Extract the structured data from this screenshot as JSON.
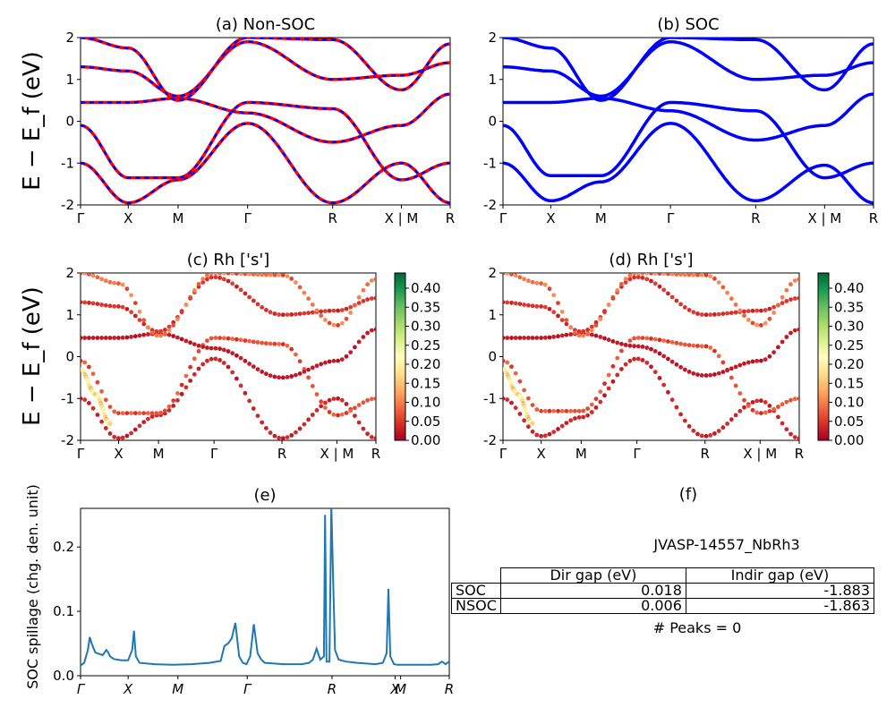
{
  "ylabel_bands": "E − E_f (eV)",
  "chart_data": [
    {
      "id": "a",
      "type": "line",
      "title": "(a) Non-SOC",
      "ylim": [
        -2,
        2
      ],
      "yticks": [
        -2,
        -1,
        0,
        1,
        2
      ],
      "xticks": [
        "Γ",
        "X",
        "M",
        "Γ",
        "R",
        "X | M",
        "R"
      ],
      "kpos": [
        0,
        0.129,
        0.264,
        0.452,
        0.682,
        0.868,
        1.0
      ],
      "colors": [
        "#ff0000",
        "#0000ff"
      ],
      "series": [
        {
          "x": [
            0,
            0.129,
            0.264,
            0.452,
            0.682,
            0.868,
            1.0
          ],
          "y": [
            -1.0,
            -1.95,
            -1.4,
            -0.05,
            -1.95,
            -1.0,
            -1.95
          ]
        },
        {
          "x": [
            0,
            0.129,
            0.264,
            0.452,
            0.682,
            0.868,
            1.0
          ],
          "y": [
            -0.1,
            -1.35,
            -1.35,
            0.45,
            0.3,
            -1.4,
            -1.0
          ]
        },
        {
          "x": [
            0,
            0.129,
            0.264,
            0.452,
            0.682,
            0.868,
            1.0
          ],
          "y": [
            0.45,
            0.45,
            0.55,
            0.2,
            -0.5,
            -0.1,
            0.65
          ]
        },
        {
          "x": [
            0,
            0.129,
            0.264,
            0.452,
            0.682,
            0.868,
            1.0
          ],
          "y": [
            1.3,
            1.2,
            0.6,
            1.9,
            1.0,
            1.1,
            1.4
          ]
        },
        {
          "x": [
            0,
            0.129,
            0.264,
            0.452,
            0.682,
            0.868,
            1.0
          ],
          "y": [
            2.0,
            1.75,
            0.5,
            2.0,
            1.95,
            0.75,
            1.85
          ]
        }
      ]
    },
    {
      "id": "b",
      "type": "line",
      "title": "(b) SOC",
      "ylim": [
        -2,
        2
      ],
      "yticks": [
        -2,
        -1,
        0,
        1,
        2
      ],
      "xticks": [
        "Γ",
        "X",
        "M",
        "Γ",
        "R",
        "X | M",
        "R"
      ],
      "kpos": [
        0,
        0.129,
        0.264,
        0.452,
        0.682,
        0.868,
        1.0
      ],
      "colors": [
        "#0000ff"
      ],
      "series": [
        {
          "x": [
            0,
            0.129,
            0.264,
            0.452,
            0.682,
            0.868,
            1.0
          ],
          "y": [
            -1.0,
            -1.9,
            -1.45,
            -0.05,
            -1.9,
            -1.05,
            -1.95
          ]
        },
        {
          "x": [
            0,
            0.129,
            0.264,
            0.452,
            0.682,
            0.868,
            1.0
          ],
          "y": [
            -0.1,
            -1.3,
            -1.3,
            0.45,
            0.25,
            -1.35,
            -1.0
          ]
        },
        {
          "x": [
            0,
            0.129,
            0.264,
            0.452,
            0.682,
            0.868,
            1.0
          ],
          "y": [
            0.45,
            0.45,
            0.55,
            0.25,
            -0.45,
            -0.1,
            0.65
          ]
        },
        {
          "x": [
            0,
            0.129,
            0.264,
            0.452,
            0.682,
            0.868,
            1.0
          ],
          "y": [
            1.3,
            1.2,
            0.6,
            1.9,
            1.0,
            1.1,
            1.4
          ]
        },
        {
          "x": [
            0,
            0.129,
            0.264,
            0.452,
            0.682,
            0.868,
            1.0
          ],
          "y": [
            2.0,
            1.75,
            0.5,
            2.0,
            1.95,
            0.75,
            1.85
          ]
        }
      ]
    },
    {
      "id": "c",
      "type": "scatter",
      "title": "(c)  Rh ['s']",
      "ylim": [
        -2,
        2
      ],
      "yticks": [
        -2,
        -1,
        0,
        1,
        2
      ],
      "xticks": [
        "Γ",
        "X",
        "M",
        "Γ",
        "R",
        "X | M",
        "R"
      ],
      "kpos": [
        0,
        0.129,
        0.264,
        0.452,
        0.682,
        0.868,
        1.0
      ],
      "colorbar": {
        "min": 0.0,
        "max": 0.44,
        "ticks": [
          "0.00",
          "0.05",
          "0.10",
          "0.15",
          "0.20",
          "0.25",
          "0.30",
          "0.35",
          "0.40"
        ],
        "colormap": "RdYlGn"
      },
      "series": [
        {
          "x": [
            0,
            0.129,
            0.264,
            0.452,
            0.682,
            0.868,
            1.0
          ],
          "y": [
            -1.0,
            -1.95,
            -1.4,
            -0.05,
            -1.95,
            -1.0,
            -1.95
          ],
          "w": 0.03
        },
        {
          "x": [
            0,
            0.129,
            0.264,
            0.452,
            0.682,
            0.868,
            1.0
          ],
          "y": [
            -0.1,
            -1.35,
            -1.35,
            0.45,
            0.3,
            -1.4,
            -1.0
          ],
          "w": 0.06
        },
        {
          "x": [
            0,
            0.129,
            0.264,
            0.452,
            0.682,
            0.868,
            1.0
          ],
          "y": [
            0.45,
            0.45,
            0.55,
            0.2,
            -0.5,
            -0.1,
            0.65
          ],
          "w": 0.02
        },
        {
          "x": [
            0,
            0.129,
            0.264,
            0.452,
            0.682,
            0.868,
            1.0
          ],
          "y": [
            1.3,
            1.2,
            0.6,
            1.9,
            1.0,
            1.1,
            1.4
          ],
          "w": 0.04
        },
        {
          "x": [
            0,
            0.129,
            0.264,
            0.452,
            0.682,
            0.868,
            1.0
          ],
          "y": [
            2.0,
            1.75,
            0.5,
            2.0,
            1.95,
            0.75,
            1.85
          ],
          "w": 0.08
        },
        {
          "x": [
            0,
            0.05,
            0.1
          ],
          "y": [
            -0.3,
            -0.9,
            -1.6
          ],
          "w": 0.18
        }
      ]
    },
    {
      "id": "d",
      "type": "scatter",
      "title": "(d) Rh ['s']",
      "ylim": [
        -2,
        2
      ],
      "yticks": [
        -2,
        -1,
        0,
        1,
        2
      ],
      "xticks": [
        "Γ",
        "X",
        "M",
        "Γ",
        "R",
        "X | M",
        "R"
      ],
      "kpos": [
        0,
        0.129,
        0.264,
        0.452,
        0.682,
        0.868,
        1.0
      ],
      "colorbar": {
        "min": 0.0,
        "max": 0.44,
        "ticks": [
          "0.00",
          "0.05",
          "0.10",
          "0.15",
          "0.20",
          "0.25",
          "0.30",
          "0.35",
          "0.40"
        ],
        "colormap": "RdYlGn"
      },
      "series": [
        {
          "x": [
            0,
            0.129,
            0.264,
            0.452,
            0.682,
            0.868,
            1.0
          ],
          "y": [
            -1.0,
            -1.9,
            -1.45,
            -0.05,
            -1.9,
            -1.05,
            -1.95
          ],
          "w": 0.03
        },
        {
          "x": [
            0,
            0.129,
            0.264,
            0.452,
            0.682,
            0.868,
            1.0
          ],
          "y": [
            -0.1,
            -1.3,
            -1.3,
            0.45,
            0.25,
            -1.35,
            -1.0
          ],
          "w": 0.06
        },
        {
          "x": [
            0,
            0.129,
            0.264,
            0.452,
            0.682,
            0.868,
            1.0
          ],
          "y": [
            0.45,
            0.45,
            0.55,
            0.25,
            -0.45,
            -0.1,
            0.65
          ],
          "w": 0.02
        },
        {
          "x": [
            0,
            0.129,
            0.264,
            0.452,
            0.682,
            0.868,
            1.0
          ],
          "y": [
            1.3,
            1.2,
            0.6,
            1.9,
            1.0,
            1.1,
            1.4
          ],
          "w": 0.04
        },
        {
          "x": [
            0,
            0.129,
            0.264,
            0.452,
            0.682,
            0.868,
            1.0
          ],
          "y": [
            2.0,
            1.75,
            0.5,
            2.0,
            1.95,
            0.75,
            1.85
          ],
          "w": 0.08
        },
        {
          "x": [
            0,
            0.05,
            0.1
          ],
          "y": [
            -0.3,
            -0.9,
            -1.6
          ],
          "w": 0.18
        }
      ]
    },
    {
      "id": "e",
      "type": "line",
      "title": "(e)",
      "ylabel": "SOC spillage (chg. den. unit)",
      "ylim": [
        0,
        0.26
      ],
      "yticks": [
        0.0,
        0.1,
        0.2
      ],
      "xticks": [
        "Γ",
        "X",
        "M",
        "Γ",
        "R",
        "X",
        "M",
        "R"
      ],
      "kpos": [
        0,
        0.129,
        0.264,
        0.452,
        0.682,
        0.853,
        0.868,
        1.0
      ],
      "color": "#1f77b4",
      "x": [
        0,
        0.01,
        0.02,
        0.025,
        0.03,
        0.04,
        0.06,
        0.07,
        0.075,
        0.08,
        0.09,
        0.11,
        0.129,
        0.14,
        0.145,
        0.15,
        0.16,
        0.2,
        0.25,
        0.3,
        0.35,
        0.38,
        0.39,
        0.4,
        0.41,
        0.42,
        0.43,
        0.44,
        0.45,
        0.46,
        0.47,
        0.48,
        0.49,
        0.5,
        0.55,
        0.6,
        0.62,
        0.63,
        0.64,
        0.65,
        0.66,
        0.663,
        0.667,
        0.67,
        0.675,
        0.68,
        0.685,
        0.69,
        0.7,
        0.72,
        0.75,
        0.8,
        0.82,
        0.83,
        0.835,
        0.84,
        0.85,
        0.86,
        0.9,
        0.95,
        0.97,
        0.98,
        0.99,
        1.0
      ],
      "y": [
        0.016,
        0.02,
        0.04,
        0.06,
        0.05,
        0.036,
        0.032,
        0.04,
        0.036,
        0.03,
        0.026,
        0.024,
        0.024,
        0.04,
        0.07,
        0.03,
        0.02,
        0.018,
        0.017,
        0.018,
        0.02,
        0.023,
        0.046,
        0.05,
        0.058,
        0.082,
        0.03,
        0.02,
        0.018,
        0.03,
        0.08,
        0.035,
        0.025,
        0.02,
        0.018,
        0.018,
        0.02,
        0.025,
        0.042,
        0.025,
        0.03,
        0.25,
        0.022,
        0.022,
        0.022,
        0.265,
        0.15,
        0.04,
        0.025,
        0.022,
        0.02,
        0.018,
        0.02,
        0.035,
        0.135,
        0.03,
        0.018,
        0.017,
        0.017,
        0.017,
        0.018,
        0.022,
        0.018,
        0.022
      ]
    }
  ],
  "panel_f": {
    "title": "(f)",
    "material": "JVASP-14557_NbRh3",
    "columns": [
      "Dir gap (eV)",
      "Indir gap (eV)"
    ],
    "rows": [
      {
        "label": "SOC",
        "dir": "0.018",
        "indir": "-1.883"
      },
      {
        "label": "NSOC",
        "dir": "0.006",
        "indir": "-1.863"
      }
    ],
    "peaks": "# Peaks = 0"
  }
}
